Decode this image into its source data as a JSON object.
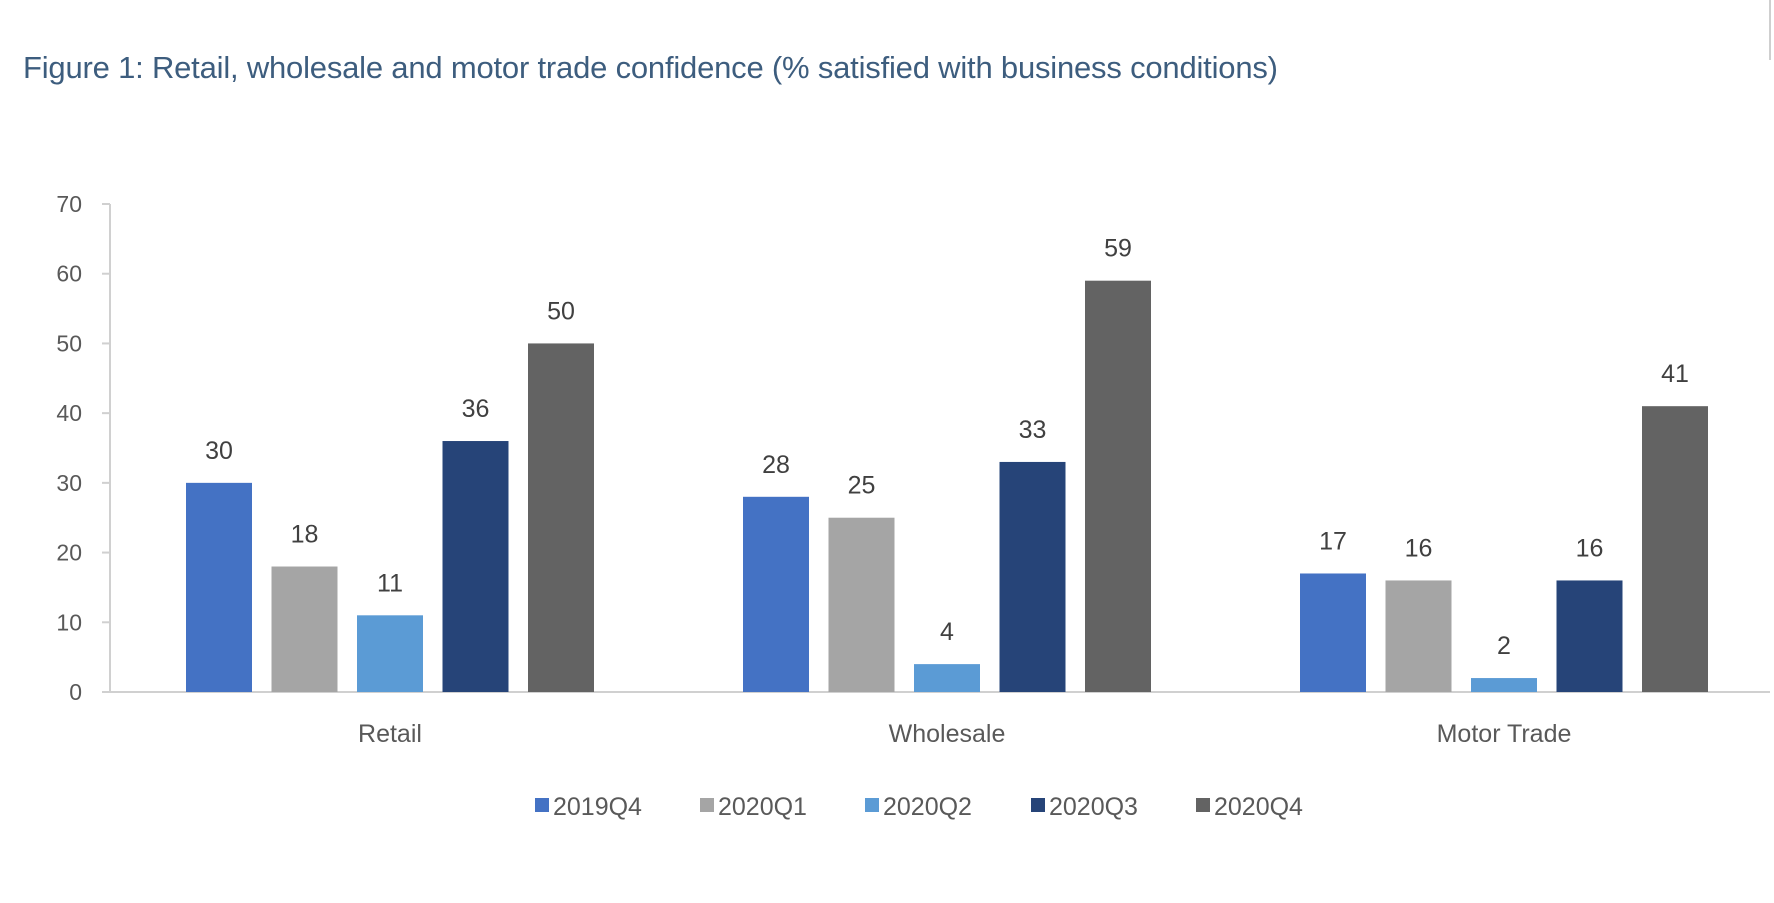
{
  "chart_data": {
    "type": "bar",
    "title": "Figure 1: Retail, wholesale and motor trade confidence (% satisfied with business conditions)",
    "xlabel": "",
    "ylabel": "",
    "ylim": [
      0,
      70
    ],
    "yticks": [
      0,
      10,
      20,
      30,
      40,
      50,
      60,
      70
    ],
    "grid": false,
    "legend_position": "bottom",
    "categories": [
      "Retail",
      "Wholesale",
      "Motor Trade"
    ],
    "series": [
      {
        "name": "2019Q4",
        "color": "#4472c4",
        "values": [
          30,
          28,
          17
        ]
      },
      {
        "name": "2020Q1",
        "color": "#a5a5a5",
        "values": [
          18,
          25,
          16
        ]
      },
      {
        "name": "2020Q2",
        "color": "#5b9bd5",
        "values": [
          11,
          4,
          2
        ]
      },
      {
        "name": "2020Q3",
        "color": "#264478",
        "values": [
          36,
          33,
          16
        ]
      },
      {
        "name": "2020Q4",
        "color": "#636363",
        "values": [
          50,
          59,
          41
        ]
      }
    ]
  }
}
